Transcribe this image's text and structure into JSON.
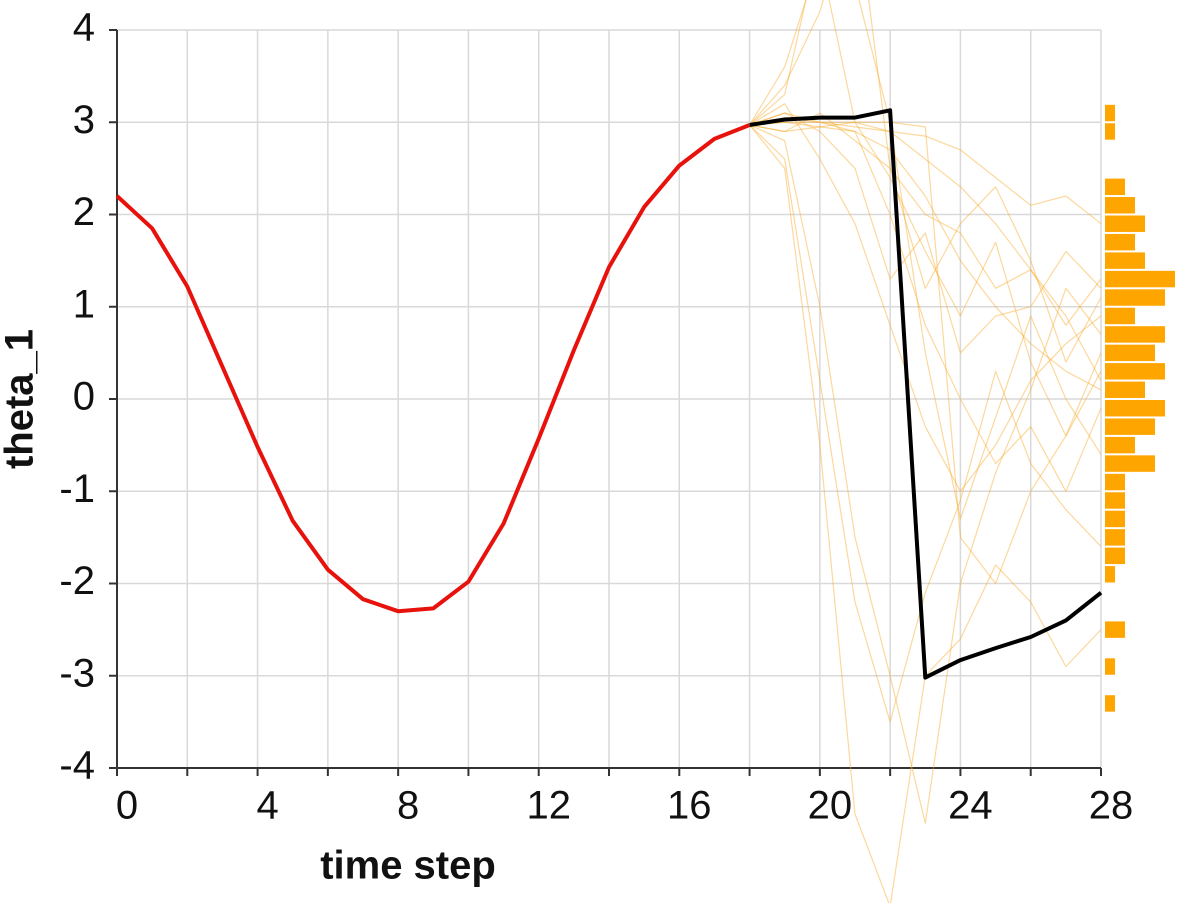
{
  "chart_data": [
    {
      "type": "line",
      "x_label": "time step",
      "y_label": "theta_1",
      "x": [
        0,
        1,
        2,
        3,
        4,
        5,
        6,
        7,
        8,
        9,
        10,
        11,
        12,
        13,
        14,
        15,
        16,
        17,
        18,
        19,
        20,
        21,
        22,
        23,
        24,
        25,
        26,
        27,
        28
      ],
      "xlim": [
        0,
        28
      ],
      "ylim": [
        -4,
        4
      ],
      "xticks": [
        0,
        4,
        8,
        12,
        16,
        20,
        24,
        28
      ],
      "x_minor_ticks": [
        2,
        6,
        10,
        14,
        18,
        22,
        26
      ],
      "yticks": [
        -4,
        -3,
        -2,
        -1,
        0,
        1,
        2,
        3,
        4
      ],
      "grid": true,
      "series": [
        {
          "color": "#e8120c",
          "width": 4,
          "values": [
            2.2,
            1.85,
            1.22,
            0.35,
            -0.52,
            -1.32,
            -1.85,
            -2.17,
            -2.3,
            -2.27,
            -1.98,
            -1.35,
            -0.43,
            0.53,
            1.43,
            2.08,
            2.53,
            2.82,
            2.97,
            null,
            null,
            null,
            null,
            null,
            null,
            null,
            null,
            null,
            null
          ]
        },
        {
          "color": "#f9a825",
          "width": 1.2,
          "values": [
            null,
            null,
            null,
            null,
            null,
            null,
            null,
            null,
            null,
            null,
            null,
            null,
            null,
            null,
            null,
            null,
            null,
            null,
            2.97,
            3.0,
            2.95,
            2.9,
            2.7,
            2.2,
            1.5,
            1.0,
            0.6,
            0.3,
            0.1
          ]
        },
        {
          "color": "#f9a825",
          "width": 1.2,
          "values": [
            null,
            null,
            null,
            null,
            null,
            null,
            null,
            null,
            null,
            null,
            null,
            null,
            null,
            null,
            null,
            null,
            null,
            null,
            2.97,
            2.9,
            3.1,
            2.8,
            2.5,
            2.0,
            1.8,
            1.2,
            1.4,
            0.8,
            1.3
          ]
        },
        {
          "color": "#f9a825",
          "width": 1.2,
          "values": [
            null,
            null,
            null,
            null,
            null,
            null,
            null,
            null,
            null,
            null,
            null,
            null,
            null,
            null,
            null,
            null,
            null,
            null,
            2.97,
            3.2,
            2.6,
            1.9,
            0.8,
            -0.3,
            -1.0,
            -0.5,
            0.2,
            0.6,
            0.9
          ]
        },
        {
          "color": "#f9a825",
          "width": 1.2,
          "values": [
            null,
            null,
            null,
            null,
            null,
            null,
            null,
            null,
            null,
            null,
            null,
            null,
            null,
            null,
            null,
            null,
            null,
            null,
            2.97,
            3.6,
            4.8,
            3.0,
            2.4,
            1.6,
            0.9,
            1.7,
            0.4,
            -0.4,
            0.5
          ]
        },
        {
          "color": "#f9a825",
          "width": 1.2,
          "values": [
            null,
            null,
            null,
            null,
            null,
            null,
            null,
            null,
            null,
            null,
            null,
            null,
            null,
            null,
            null,
            null,
            null,
            null,
            2.97,
            2.8,
            1.0,
            -1.5,
            -3.0,
            -4.6,
            -2.0,
            -0.8,
            0.1,
            1.2,
            0.7
          ]
        },
        {
          "color": "#f9a825",
          "width": 1.2,
          "values": [
            null,
            null,
            null,
            null,
            null,
            null,
            null,
            null,
            null,
            null,
            null,
            null,
            null,
            null,
            null,
            null,
            null,
            null,
            2.97,
            3.05,
            3.0,
            3.0,
            2.9,
            2.6,
            2.3,
            1.9,
            1.4,
            0.9,
            0.2
          ]
        },
        {
          "color": "#f9a825",
          "width": 1.2,
          "values": [
            null,
            null,
            null,
            null,
            null,
            null,
            null,
            null,
            null,
            null,
            null,
            null,
            null,
            null,
            null,
            null,
            null,
            null,
            2.97,
            3.3,
            5.0,
            4.5,
            3.0,
            0.5,
            -1.3,
            -0.2,
            0.9,
            0.0,
            -0.6
          ]
        },
        {
          "color": "#f9a825",
          "width": 1.2,
          "values": [
            null,
            null,
            null,
            null,
            null,
            null,
            null,
            null,
            null,
            null,
            null,
            null,
            null,
            null,
            null,
            null,
            null,
            null,
            2.97,
            2.6,
            0.2,
            -2.2,
            -3.5,
            -2.1,
            -1.1,
            0.3,
            -0.7,
            -1.2,
            -1.6
          ]
        },
        {
          "color": "#f9a825",
          "width": 1.2,
          "values": [
            null,
            null,
            null,
            null,
            null,
            null,
            null,
            null,
            null,
            null,
            null,
            null,
            null,
            null,
            null,
            null,
            null,
            null,
            2.97,
            3.1,
            3.0,
            2.95,
            2.9,
            2.85,
            2.7,
            2.4,
            2.1,
            2.2,
            1.9
          ]
        },
        {
          "color": "#f9a825",
          "width": 1.2,
          "values": [
            null,
            null,
            null,
            null,
            null,
            null,
            null,
            null,
            null,
            null,
            null,
            null,
            null,
            null,
            null,
            null,
            null,
            null,
            2.97,
            3.4,
            4.2,
            5.5,
            2.5,
            1.2,
            1.9,
            2.3,
            1.5,
            0.4,
            1.1
          ]
        },
        {
          "color": "#f9a825",
          "width": 1.2,
          "values": [
            null,
            null,
            null,
            null,
            null,
            null,
            null,
            null,
            null,
            null,
            null,
            null,
            null,
            null,
            null,
            null,
            null,
            null,
            2.97,
            2.5,
            -0.5,
            -4.5,
            -5.5,
            -3.0,
            -2.6,
            -1.8,
            -2.2,
            -2.9,
            -2.5
          ]
        },
        {
          "color": "#f9a825",
          "width": 1.2,
          "values": [
            null,
            null,
            null,
            null,
            null,
            null,
            null,
            null,
            null,
            null,
            null,
            null,
            null,
            null,
            null,
            null,
            null,
            null,
            2.97,
            3.0,
            3.0,
            2.9,
            2.0,
            0.8,
            0.0,
            -0.7,
            -0.3,
            -1.0,
            -0.1
          ]
        },
        {
          "color": "#f9a825",
          "width": 1.2,
          "values": [
            null,
            null,
            null,
            null,
            null,
            null,
            null,
            null,
            null,
            null,
            null,
            null,
            null,
            null,
            null,
            null,
            null,
            null,
            2.97,
            3.1,
            2.9,
            2.5,
            1.3,
            1.8,
            0.5,
            0.9,
            1.0,
            1.6,
            1.2
          ]
        },
        {
          "color": "#f9a825",
          "width": 1.2,
          "values": [
            null,
            null,
            null,
            null,
            null,
            null,
            null,
            null,
            null,
            null,
            null,
            null,
            null,
            null,
            null,
            null,
            null,
            null,
            2.97,
            2.9,
            2.95,
            3.0,
            3.0,
            2.95,
            -1.5,
            -2.0,
            -1.0,
            -0.4,
            0.3
          ]
        },
        {
          "color": "#000000",
          "width": 4,
          "values": [
            null,
            null,
            null,
            null,
            null,
            null,
            null,
            null,
            null,
            null,
            null,
            null,
            null,
            null,
            null,
            null,
            null,
            null,
            2.97,
            3.03,
            3.05,
            3.05,
            3.13,
            -3.02,
            -2.83,
            -2.7,
            -2.58,
            -2.4,
            -2.1
          ]
        }
      ]
    },
    {
      "type": "histogram",
      "orientation": "horizontal",
      "color": "#ffa500",
      "bins": [
        -3.4,
        -3.2,
        -3.0,
        -2.8,
        -2.6,
        -2.4,
        -2.2,
        -2.0,
        -1.8,
        -1.6,
        -1.4,
        -1.2,
        -1.0,
        -0.8,
        -0.6,
        -0.4,
        -0.2,
        0,
        0.2,
        0.4,
        0.6,
        0.8,
        1.0,
        1.2,
        1.4,
        1.6,
        1.8,
        2.0,
        2.2,
        2.4,
        2.6,
        2.8,
        3.0,
        3.2
      ],
      "counts": [
        1,
        0,
        1,
        0,
        2,
        0,
        0,
        1,
        2,
        2,
        2,
        2,
        2,
        5,
        3,
        5,
        6,
        4,
        6,
        5,
        6,
        3,
        6,
        7,
        4,
        3,
        4,
        3,
        2,
        0,
        0,
        1,
        1
      ]
    }
  ]
}
